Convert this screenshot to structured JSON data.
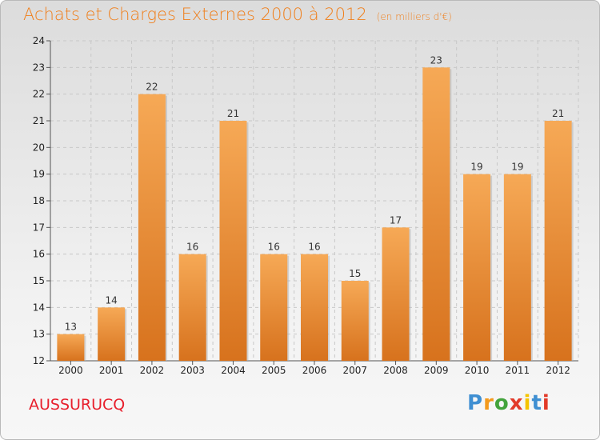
{
  "header": {
    "title": "Achats et Charges Externes 2000 à 2012",
    "unit": "(en milliers d'€)"
  },
  "footer": {
    "commune": "AUSSURUCQ",
    "logo_letters": [
      "P",
      "r",
      "o",
      "x",
      "i",
      "t",
      "i"
    ],
    "logo_colors": [
      "#3f8fd2",
      "#f49a1d",
      "#43a33c",
      "#e23b2a",
      "#f5c400",
      "#3f8fd2",
      "#e23b2a"
    ]
  },
  "colors": {
    "bar_light": "#f6a956",
    "bar_dark": "#d7721d",
    "title": "#f07f1b",
    "commune": "#e8202d"
  },
  "chart_data": {
    "type": "bar",
    "title": "Achats et Charges Externes 2000 à 2012",
    "categories": [
      "2000",
      "2001",
      "2002",
      "2003",
      "2004",
      "2005",
      "2006",
      "2007",
      "2008",
      "2009",
      "2010",
      "2011",
      "2012"
    ],
    "values": [
      13,
      14,
      22,
      16,
      21,
      16,
      16,
      15,
      17,
      23,
      19,
      19,
      21
    ],
    "ylim": [
      12,
      24
    ],
    "yticks": [
      12,
      13,
      14,
      15,
      16,
      17,
      18,
      19,
      20,
      21,
      22,
      23,
      24
    ],
    "grid": true,
    "xlabel": "",
    "ylabel": ""
  }
}
